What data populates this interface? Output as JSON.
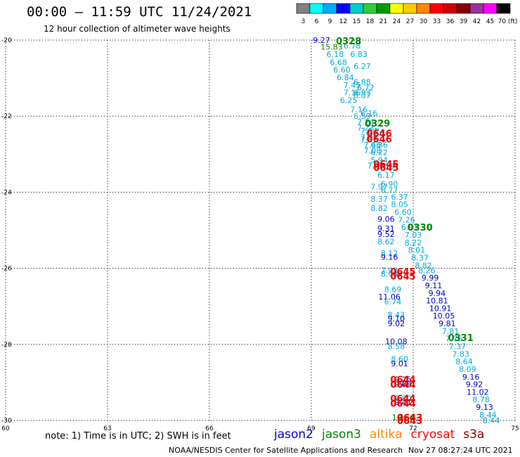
{
  "header": {
    "title": "00:00 – 11:59 UTC 11/24/2021",
    "subtitle": "12 hour collection of altimeter wave heights"
  },
  "colorbar": {
    "labels": [
      "3",
      "6",
      "9",
      "12",
      "15",
      "18",
      "21",
      "24",
      "27",
      "30",
      "33",
      "36",
      "39",
      "42",
      "45",
      "70 (ft)"
    ],
    "colors": [
      "#808080",
      "#00ffff",
      "#00aaff",
      "#0000ff",
      "#00cccc",
      "#33cc33",
      "#009900",
      "#ffff00",
      "#ffcc00",
      "#ff8800",
      "#ff0000",
      "#cc0000",
      "#880000",
      "#993399",
      "#ff00ff",
      "#000000"
    ]
  },
  "chart_data": {
    "type": "scatter",
    "title": "00:00 – 11:59 UTC 11/24/2021",
    "subtitle": "12 hour collection of altimeter wave heights",
    "xlabel": "",
    "ylabel": "",
    "xlim": [
      60,
      75
    ],
    "ylim": [
      -30,
      -20
    ],
    "x_ticks": [
      "60",
      "63",
      "66",
      "69",
      "72",
      "75"
    ],
    "y_ticks": [
      "-20",
      "-22",
      "-24",
      "-26",
      "-28",
      "-30"
    ],
    "grid": true,
    "series_colors": {
      "jason2": "#0000cc",
      "jason3": "#008800",
      "altika": "#ff8800",
      "cryosat": "#ff0000",
      "s3a": "#880000",
      "cyan": "#00aadd"
    },
    "points": [
      {
        "x": 69.3,
        "y": -20.0,
        "t": "9.27",
        "s": "jason2"
      },
      {
        "x": 69.6,
        "y": -20.18,
        "t": "15.83",
        "s": "jason3"
      },
      {
        "x": 70.2,
        "y": -20.15,
        "t": "6.78",
        "s": "cyan"
      },
      {
        "x": 69.7,
        "y": -20.37,
        "t": "6.18",
        "s": "cyan"
      },
      {
        "x": 70.4,
        "y": -20.37,
        "t": "6.83",
        "s": "cyan"
      },
      {
        "x": 69.8,
        "y": -20.58,
        "t": "6.68",
        "s": "cyan"
      },
      {
        "x": 70.5,
        "y": -20.68,
        "t": "6.27",
        "s": "cyan"
      },
      {
        "x": 69.9,
        "y": -20.78,
        "t": "6.60",
        "s": "cyan"
      },
      {
        "x": 70.0,
        "y": -20.98,
        "t": "6.84",
        "s": "cyan"
      },
      {
        "x": 70.5,
        "y": -21.1,
        "t": "6.88",
        "s": "cyan"
      },
      {
        "x": 70.2,
        "y": -21.18,
        "t": "7.45",
        "s": "cyan"
      },
      {
        "x": 70.6,
        "y": -21.25,
        "t": "6.72",
        "s": "cyan"
      },
      {
        "x": 70.2,
        "y": -21.38,
        "t": "7.16",
        "s": "cyan"
      },
      {
        "x": 70.5,
        "y": -21.38,
        "t": "6.93",
        "s": "cyan"
      },
      {
        "x": 70.5,
        "y": -21.45,
        "t": "6.07",
        "s": "cyan"
      },
      {
        "x": 70.1,
        "y": -21.58,
        "t": "6.25",
        "s": "cyan"
      },
      {
        "x": 70.4,
        "y": -21.82,
        "t": "7.16",
        "s": "cyan"
      },
      {
        "x": 70.7,
        "y": -21.92,
        "t": "6.16",
        "s": "cyan"
      },
      {
        "x": 70.5,
        "y": -22.0,
        "t": "6.59",
        "s": "cyan"
      },
      {
        "x": 70.6,
        "y": -22.15,
        "t": "7.24",
        "s": "cyan"
      },
      {
        "x": 70.6,
        "y": -22.3,
        "t": "7.23",
        "s": "cyan"
      },
      {
        "x": 70.7,
        "y": -22.38,
        "t": "7.04",
        "s": "cyan"
      },
      {
        "x": 70.9,
        "y": -22.4,
        "t": "6.74",
        "s": "cyan"
      },
      {
        "x": 70.7,
        "y": -22.55,
        "t": "7.99",
        "s": "cyan"
      },
      {
        "x": 70.7,
        "y": -22.62,
        "t": "7.63",
        "s": "cyan"
      },
      {
        "x": 70.8,
        "y": -22.75,
        "t": "7.46",
        "s": "cyan"
      },
      {
        "x": 71.0,
        "y": -22.75,
        "t": "6.86",
        "s": "cyan"
      },
      {
        "x": 70.8,
        "y": -22.9,
        "t": "7.08",
        "s": "cyan"
      },
      {
        "x": 71.0,
        "y": -22.95,
        "t": "6.22",
        "s": "cyan"
      },
      {
        "x": 71.0,
        "y": -23.15,
        "t": "5.94",
        "s": "cyan"
      },
      {
        "x": 70.9,
        "y": -23.3,
        "t": "7.28",
        "s": "cyan"
      },
      {
        "x": 71.2,
        "y": -23.32,
        "t": "6.19",
        "s": "cyan"
      },
      {
        "x": 71.2,
        "y": -23.55,
        "t": "6.17",
        "s": "cyan"
      },
      {
        "x": 71.3,
        "y": -23.78,
        "t": "6.90",
        "s": "cyan"
      },
      {
        "x": 71.0,
        "y": -23.85,
        "t": "7.97",
        "s": "cyan"
      },
      {
        "x": 71.3,
        "y": -23.95,
        "t": "6.77",
        "s": "cyan"
      },
      {
        "x": 71.6,
        "y": -24.12,
        "t": "6.37",
        "s": "cyan"
      },
      {
        "x": 71.0,
        "y": -24.18,
        "t": "8.37",
        "s": "cyan"
      },
      {
        "x": 71.6,
        "y": -24.32,
        "t": "8.05",
        "s": "cyan"
      },
      {
        "x": 71.0,
        "y": -24.42,
        "t": "8.82",
        "s": "cyan"
      },
      {
        "x": 71.7,
        "y": -24.52,
        "t": "6.60",
        "s": "cyan"
      },
      {
        "x": 71.2,
        "y": -24.7,
        "t": "9.06",
        "s": "jason2"
      },
      {
        "x": 71.8,
        "y": -24.72,
        "t": "7.26",
        "s": "cyan"
      },
      {
        "x": 71.9,
        "y": -24.92,
        "t": "6.91",
        "s": "cyan"
      },
      {
        "x": 71.2,
        "y": -24.95,
        "t": "9.31",
        "s": "jason2"
      },
      {
        "x": 71.2,
        "y": -25.1,
        "t": "9.52",
        "s": "jason2"
      },
      {
        "x": 72.0,
        "y": -25.12,
        "t": "7.03",
        "s": "cyan"
      },
      {
        "x": 71.2,
        "y": -25.3,
        "t": "8.62",
        "s": "cyan"
      },
      {
        "x": 72.0,
        "y": -25.32,
        "t": "8.22",
        "s": "cyan"
      },
      {
        "x": 72.1,
        "y": -25.52,
        "t": "8.01",
        "s": "cyan"
      },
      {
        "x": 71.3,
        "y": -25.6,
        "t": "8.12",
        "s": "cyan"
      },
      {
        "x": 71.3,
        "y": -25.7,
        "t": "9.16",
        "s": "jason2"
      },
      {
        "x": 72.2,
        "y": -25.72,
        "t": "8.37",
        "s": "cyan"
      },
      {
        "x": 72.3,
        "y": -25.92,
        "t": "8.82",
        "s": "cyan"
      },
      {
        "x": 71.3,
        "y": -26.05,
        "t": "7.92",
        "s": "cyan"
      },
      {
        "x": 72.4,
        "y": -26.05,
        "t": "8.26",
        "s": "cyan"
      },
      {
        "x": 71.3,
        "y": -26.15,
        "t": "8.08",
        "s": "cyan"
      },
      {
        "x": 72.5,
        "y": -26.25,
        "t": "9.99",
        "s": "jason2"
      },
      {
        "x": 72.6,
        "y": -26.45,
        "t": "9.11",
        "s": "jason2"
      },
      {
        "x": 71.4,
        "y": -26.55,
        "t": "8.69",
        "s": "cyan"
      },
      {
        "x": 72.7,
        "y": -26.65,
        "t": "9.94",
        "s": "jason2"
      },
      {
        "x": 71.3,
        "y": -26.75,
        "t": "11.06",
        "s": "jason2"
      },
      {
        "x": 72.7,
        "y": -26.85,
        "t": "10.81",
        "s": "jason2"
      },
      {
        "x": 71.4,
        "y": -26.88,
        "t": "6.74",
        "s": "cyan"
      },
      {
        "x": 72.8,
        "y": -27.05,
        "t": "10.91",
        "s": "jason2"
      },
      {
        "x": 71.5,
        "y": -27.22,
        "t": "8.43",
        "s": "cyan"
      },
      {
        "x": 72.9,
        "y": -27.25,
        "t": "10.05",
        "s": "jason2"
      },
      {
        "x": 71.5,
        "y": -27.32,
        "t": "9.10",
        "s": "jason2"
      },
      {
        "x": 71.5,
        "y": -27.45,
        "t": "9.02",
        "s": "jason2"
      },
      {
        "x": 73.0,
        "y": -27.45,
        "t": "9.81",
        "s": "jason2"
      },
      {
        "x": 73.1,
        "y": -27.65,
        "t": "7.81",
        "s": "cyan"
      },
      {
        "x": 73.2,
        "y": -27.85,
        "t": "7.76",
        "s": "cyan"
      },
      {
        "x": 71.5,
        "y": -27.92,
        "t": "10.08",
        "s": "jason2"
      },
      {
        "x": 73.3,
        "y": -28.05,
        "t": "7.37",
        "s": "cyan"
      },
      {
        "x": 71.5,
        "y": -28.05,
        "t": "8.58",
        "s": "cyan"
      },
      {
        "x": 73.4,
        "y": -28.25,
        "t": "7.83",
        "s": "cyan"
      },
      {
        "x": 71.6,
        "y": -28.38,
        "t": "8.60",
        "s": "cyan"
      },
      {
        "x": 73.5,
        "y": -28.45,
        "t": "8.64",
        "s": "cyan"
      },
      {
        "x": 71.6,
        "y": -28.5,
        "t": "9.01",
        "s": "jason2"
      },
      {
        "x": 73.6,
        "y": -28.65,
        "t": "8.09",
        "s": "cyan"
      },
      {
        "x": 73.7,
        "y": -28.85,
        "t": "9.16",
        "s": "jason2"
      },
      {
        "x": 71.7,
        "y": -28.92,
        "t": "9.25",
        "s": "jason2"
      },
      {
        "x": 71.7,
        "y": -29.05,
        "t": "9.68",
        "s": "jason2"
      },
      {
        "x": 73.8,
        "y": -29.05,
        "t": "9.92",
        "s": "jason2"
      },
      {
        "x": 73.9,
        "y": -29.25,
        "t": "11.02",
        "s": "jason2"
      },
      {
        "x": 71.7,
        "y": -29.42,
        "t": "8.80",
        "s": "cyan"
      },
      {
        "x": 74.0,
        "y": -29.45,
        "t": "8.78",
        "s": "cyan"
      },
      {
        "x": 71.7,
        "y": -29.52,
        "t": "9.41",
        "s": "jason2"
      },
      {
        "x": 74.1,
        "y": -29.65,
        "t": "9.13",
        "s": "jason2"
      },
      {
        "x": 74.2,
        "y": -29.85,
        "t": "8.44",
        "s": "cyan"
      },
      {
        "x": 71.7,
        "y": -29.92,
        "t": "10.64",
        "s": "jason3"
      },
      {
        "x": 74.3,
        "y": -30.0,
        "t": "8.44",
        "s": "cyan"
      }
    ],
    "time_labels": [
      {
        "x": 70.1,
        "y": -20.02,
        "t": "0328",
        "s": "jason3"
      },
      {
        "x": 70.95,
        "y": -22.18,
        "t": "0329",
        "s": "jason3"
      },
      {
        "x": 72.2,
        "y": -24.92,
        "t": "0330",
        "s": "jason3"
      },
      {
        "x": 73.4,
        "y": -27.82,
        "t": "0331",
        "s": "jason3"
      },
      {
        "x": 71.0,
        "y": -22.45,
        "t": "0646",
        "s": "cyan_red"
      },
      {
        "x": 71.0,
        "y": -22.6,
        "t": "0646",
        "s": "cyan_red"
      },
      {
        "x": 71.2,
        "y": -23.25,
        "t": "0645",
        "s": "cyan_red"
      },
      {
        "x": 71.2,
        "y": -23.35,
        "t": "0645",
        "s": "cyan_red"
      },
      {
        "x": 71.7,
        "y": -26.08,
        "t": "0645",
        "s": "cyan_red"
      },
      {
        "x": 71.7,
        "y": -26.2,
        "t": "0645",
        "s": "cyan_red"
      },
      {
        "x": 71.7,
        "y": -28.92,
        "t": "0644",
        "s": "cyan_red"
      },
      {
        "x": 71.7,
        "y": -29.05,
        "t": "0644",
        "s": "cyan_red"
      },
      {
        "x": 71.7,
        "y": -29.42,
        "t": "0644",
        "s": "cyan_red"
      },
      {
        "x": 71.7,
        "y": -29.55,
        "t": "0644",
        "s": "cyan_red"
      },
      {
        "x": 71.9,
        "y": -29.92,
        "t": "0643",
        "s": "cyan_red"
      },
      {
        "x": 71.9,
        "y": -30.0,
        "t": "0643",
        "s": "cyan_red"
      }
    ]
  },
  "footer": {
    "note": "note: 1) Time is in UTC; 2) SWH is in feet",
    "legend": [
      {
        "name": "jason2",
        "color": "#0000cc"
      },
      {
        "name": "jason3",
        "color": "#008800"
      },
      {
        "name": "altika",
        "color": "#ff8800"
      },
      {
        "name": "cryosat",
        "color": "#ff0000"
      },
      {
        "name": "s3a",
        "color": "#880000"
      }
    ],
    "credit": "NOAA/NESDIS Center for Satellite Applications and Research",
    "timestamp": "Nov 27 08:27:24 UTC 2021"
  }
}
